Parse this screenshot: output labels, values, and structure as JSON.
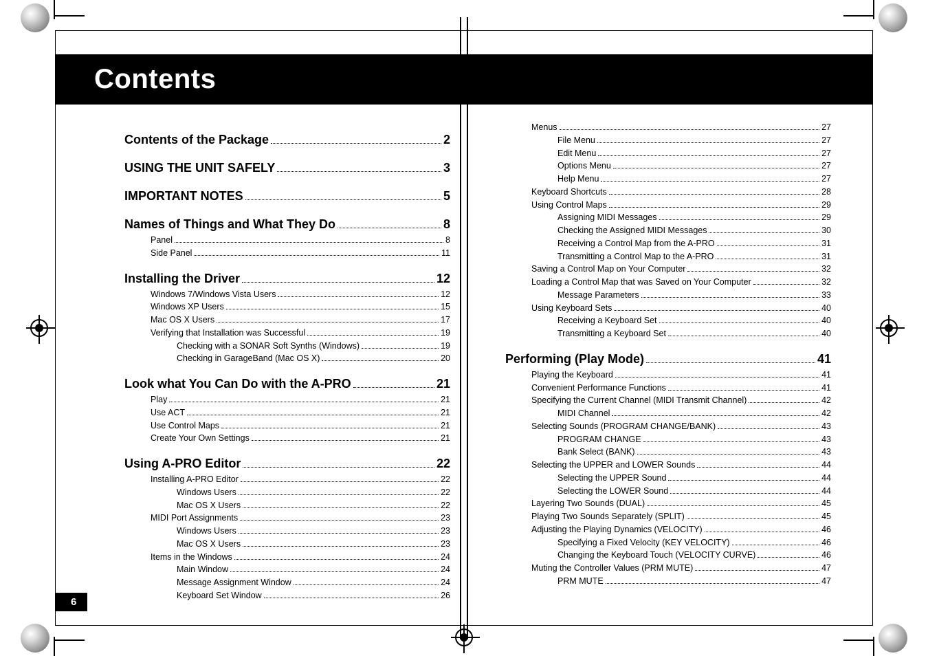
{
  "title": "Contents",
  "page_number": "6",
  "styling": {
    "banner_bg": "#000000",
    "banner_fg": "#ffffff",
    "text_color": "#000000",
    "heading_fontsize_pt": 18,
    "body_fontsize_pt": 12.5,
    "title_fontsize_pt": 40
  },
  "left": [
    {
      "label": "Contents of the Package",
      "page": "2",
      "level": 0
    },
    {
      "label": "USING THE UNIT SAFELY",
      "page": "3",
      "level": 0
    },
    {
      "label": "IMPORTANT NOTES",
      "page": "5",
      "level": 0
    },
    {
      "label": "Names of Things and What They Do",
      "page": "8",
      "level": 0
    },
    {
      "label": "Panel",
      "page": "8",
      "level": 1
    },
    {
      "label": "Side Panel",
      "page": "11",
      "level": 1
    },
    {
      "label": "Installing the Driver",
      "page": "12",
      "level": 0
    },
    {
      "label": "Windows 7/Windows Vista Users",
      "page": "12",
      "level": 1
    },
    {
      "label": "Windows XP Users",
      "page": "15",
      "level": 1
    },
    {
      "label": "Mac OS X Users",
      "page": "17",
      "level": 1
    },
    {
      "label": "Verifying that Installation was Successful",
      "page": "19",
      "level": 1
    },
    {
      "label": "Checking with a SONAR Soft Synths (Windows)",
      "page": "19",
      "level": 2
    },
    {
      "label": "Checking in GarageBand (Mac OS X)",
      "page": "20",
      "level": 2
    },
    {
      "label": "Look what You Can Do with the A-PRO",
      "page": "21",
      "level": 0
    },
    {
      "label": "Play",
      "page": "21",
      "level": 1
    },
    {
      "label": "Use ACT",
      "page": "21",
      "level": 1
    },
    {
      "label": "Use Control Maps",
      "page": "21",
      "level": 1
    },
    {
      "label": "Create Your Own Settings",
      "page": "21",
      "level": 1
    },
    {
      "label": "Using A-PRO Editor",
      "page": "22",
      "level": 0
    },
    {
      "label": "Installing A-PRO Editor",
      "page": "22",
      "level": 1
    },
    {
      "label": "Windows Users",
      "page": "22",
      "level": 2
    },
    {
      "label": "Mac OS X Users",
      "page": "22",
      "level": 2
    },
    {
      "label": "MIDI Port Assignments",
      "page": "23",
      "level": 1
    },
    {
      "label": "Windows Users",
      "page": "23",
      "level": 2
    },
    {
      "label": "Mac OS X Users",
      "page": "23",
      "level": 2
    },
    {
      "label": "Items in the Windows",
      "page": "24",
      "level": 1
    },
    {
      "label": "Main Window",
      "page": "24",
      "level": 2
    },
    {
      "label": "Message Assignment Window",
      "page": "24",
      "level": 2
    },
    {
      "label": "Keyboard Set Window",
      "page": "26",
      "level": 2
    }
  ],
  "right": [
    {
      "label": "Menus",
      "page": "27",
      "level": 1
    },
    {
      "label": "File Menu",
      "page": "27",
      "level": 2
    },
    {
      "label": "Edit Menu",
      "page": "27",
      "level": 2
    },
    {
      "label": "Options Menu",
      "page": "27",
      "level": 2
    },
    {
      "label": "Help Menu",
      "page": "27",
      "level": 2
    },
    {
      "label": "Keyboard Shortcuts",
      "page": "28",
      "level": 1
    },
    {
      "label": "Using Control Maps",
      "page": "29",
      "level": 1
    },
    {
      "label": "Assigning MIDI Messages",
      "page": "29",
      "level": 2
    },
    {
      "label": "Checking the Assigned MIDI Messages",
      "page": "30",
      "level": 2
    },
    {
      "label": "Receiving a Control Map from the A-PRO",
      "page": "31",
      "level": 2
    },
    {
      "label": "Transmitting a Control Map to the A-PRO",
      "page": "31",
      "level": 2
    },
    {
      "label": "Saving a Control Map on Your Computer",
      "page": "32",
      "level": 1
    },
    {
      "label": "Loading a Control Map that was Saved on Your Computer",
      "page": "32",
      "level": 1
    },
    {
      "label": "Message Parameters",
      "page": "33",
      "level": 2
    },
    {
      "label": "Using Keyboard Sets",
      "page": "40",
      "level": 1
    },
    {
      "label": "Receiving a Keyboard Set",
      "page": "40",
      "level": 2
    },
    {
      "label": "Transmitting a Keyboard Set",
      "page": "40",
      "level": 2
    },
    {
      "label": "Performing (Play Mode)",
      "page": "41",
      "level": 0
    },
    {
      "label": "Playing the Keyboard",
      "page": "41",
      "level": 1
    },
    {
      "label": "Convenient Performance Functions",
      "page": "41",
      "level": 1
    },
    {
      "label": "Specifying the Current Channel (MIDI Transmit Channel)",
      "page": "42",
      "level": 1
    },
    {
      "label": "MIDI Channel",
      "page": "42",
      "level": 2
    },
    {
      "label": "Selecting Sounds (PROGRAM CHANGE/BANK)",
      "page": "43",
      "level": 1
    },
    {
      "label": "PROGRAM CHANGE",
      "page": "43",
      "level": 2
    },
    {
      "label": "Bank Select (BANK)",
      "page": "43",
      "level": 2
    },
    {
      "label": "Selecting the UPPER and LOWER Sounds",
      "page": "44",
      "level": 1
    },
    {
      "label": "Selecting the UPPER Sound",
      "page": "44",
      "level": 2
    },
    {
      "label": "Selecting the LOWER Sound",
      "page": "44",
      "level": 2
    },
    {
      "label": "Layering Two Sounds (DUAL)",
      "page": "45",
      "level": 1
    },
    {
      "label": "Playing Two Sounds Separately (SPLIT)",
      "page": "45",
      "level": 1
    },
    {
      "label": "Adjusting the Playing Dynamics (VELOCITY)",
      "page": "46",
      "level": 1
    },
    {
      "label": "Specifying a Fixed Velocity (KEY VELOCITY)",
      "page": "46",
      "level": 2
    },
    {
      "label": "Changing the Keyboard Touch (VELOCITY CURVE)",
      "page": "46",
      "level": 2
    },
    {
      "label": "Muting the Controller Values (PRM MUTE)",
      "page": "47",
      "level": 1
    },
    {
      "label": "PRM MUTE",
      "page": "47",
      "level": 2
    }
  ]
}
